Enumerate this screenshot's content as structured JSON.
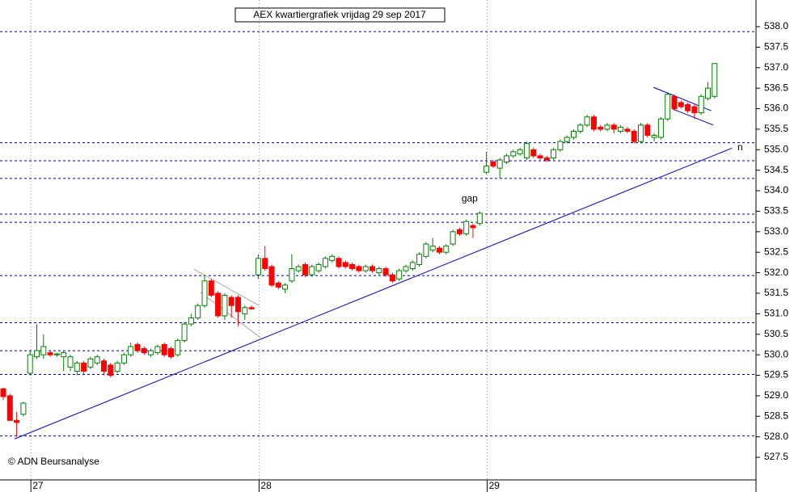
{
  "chart_data": {
    "type": "candlestick",
    "title": "AEX kwartiergrafiek vrijdag 29 sep 2017",
    "credit": "© ADN Beursanalyse",
    "ylim": [
      526.95,
      538.65
    ],
    "yticks": [
      {
        "value": 527.5,
        "label": "527.5"
      },
      {
        "value": 528,
        "label": "528.0"
      },
      528.5,
      {
        "value": 529,
        "label": "529.0"
      },
      529.5,
      {
        "value": 530,
        "label": "530.0"
      },
      530.5,
      {
        "value": 531,
        "label": "531.0"
      },
      531.5,
      {
        "value": 532,
        "label": "532.0"
      },
      532.5,
      {
        "value": 533,
        "label": "533.0"
      },
      533.5,
      {
        "value": 534,
        "label": "534.0"
      },
      534.5,
      {
        "value": 535,
        "label": "535.0"
      },
      535.5,
      {
        "value": 536,
        "label": "536.0"
      },
      536.5,
      {
        "value": 537,
        "label": "537.0"
      },
      537.5,
      {
        "value": 538,
        "label": "538.0"
      }
    ],
    "x_labels": [
      {
        "label": "27",
        "at": 4
      },
      {
        "label": "28",
        "at": 38
      },
      {
        "label": "29",
        "at": 72
      }
    ],
    "up_color": "#008000",
    "down_color": "#ff0000",
    "levels": [
      537.88,
      535.17,
      534.73,
      534.3,
      533.43,
      533.23,
      531.93,
      530.78,
      530.1,
      529.52,
      528.02
    ],
    "trendlines": [
      {
        "color": "#0000cc",
        "points": [
          [
            1.7,
            527.95
          ],
          [
            108.6,
            535.04
          ]
        ]
      },
      {
        "color": "#0000cc",
        "points": [
          [
            96.9,
            536.52
          ],
          [
            105.5,
            535.95
          ]
        ]
      },
      {
        "color": "#0000cc",
        "points": [
          [
            99.8,
            535.99
          ],
          [
            105.8,
            535.6
          ]
        ]
      },
      {
        "color": "#aaaaaa",
        "points": [
          [
            28.4,
            532.09
          ],
          [
            38.1,
            531.2
          ]
        ]
      },
      {
        "color": "#aaaaaa",
        "points": [
          [
            29.4,
            531.52
          ],
          [
            38.3,
            530.42
          ]
        ]
      }
    ],
    "annotations": [
      {
        "text": "gap",
        "at": [
          69.5,
          533.8
        ]
      },
      {
        "text": "n",
        "at": [
          109.8,
          535.05
        ]
      }
    ],
    "ohlc": [
      [
        529.17,
        529.2,
        528.9,
        528.98
      ],
      [
        529.0,
        529.05,
        528.4,
        528.4
      ],
      [
        528.4,
        528.6,
        528.0,
        528.35
      ],
      [
        528.55,
        528.85,
        528.5,
        528.82
      ],
      [
        529.55,
        530.1,
        529.5,
        530.0
      ],
      [
        529.95,
        530.75,
        529.9,
        530.1
      ],
      [
        530.0,
        530.5,
        529.9,
        530.2
      ],
      [
        530.05,
        530.1,
        529.95,
        530.0
      ],
      [
        530.0,
        530.05,
        529.95,
        530.02
      ],
      [
        529.95,
        530.1,
        529.6,
        530.05
      ],
      [
        529.7,
        530.0,
        529.6,
        529.95
      ],
      [
        529.6,
        529.85,
        529.5,
        529.8
      ],
      [
        529.8,
        529.85,
        529.5,
        529.6
      ],
      [
        529.7,
        529.95,
        529.65,
        529.9
      ],
      [
        529.8,
        530.0,
        529.75,
        529.95
      ],
      [
        529.85,
        529.9,
        529.5,
        529.6
      ],
      [
        529.75,
        529.8,
        529.45,
        529.5
      ],
      [
        529.6,
        529.85,
        529.55,
        529.8
      ],
      [
        529.8,
        530.05,
        529.75,
        530.0
      ],
      [
        530.0,
        530.3,
        529.95,
        530.2
      ],
      [
        530.25,
        530.3,
        530.05,
        530.1
      ],
      [
        530.15,
        530.2,
        530.0,
        530.05
      ],
      [
        530.0,
        530.15,
        529.95,
        530.1
      ],
      [
        530.05,
        530.25,
        530.0,
        530.2
      ],
      [
        530.25,
        530.3,
        529.95,
        530.0
      ],
      [
        530.15,
        530.2,
        529.9,
        529.95
      ],
      [
        530.0,
        530.4,
        529.95,
        530.35
      ],
      [
        530.35,
        530.8,
        530.3,
        530.75
      ],
      [
        530.75,
        531.0,
        530.7,
        530.9
      ],
      [
        530.9,
        531.25,
        530.85,
        531.2
      ],
      [
        531.2,
        531.95,
        531.15,
        531.8
      ],
      [
        531.8,
        531.85,
        531.4,
        531.45
      ],
      [
        531.5,
        531.55,
        530.9,
        530.95
      ],
      [
        530.95,
        531.5,
        530.85,
        531.45
      ],
      [
        531.4,
        531.45,
        530.9,
        531.2
      ],
      [
        531.4,
        531.45,
        530.7,
        531.05
      ],
      [
        531.0,
        531.2,
        530.85,
        531.15
      ],
      [
        531.15,
        531.2,
        531.1,
        531.12
      ],
      [
        531.95,
        532.45,
        531.85,
        532.35
      ],
      [
        532.35,
        532.65,
        532.05,
        532.1
      ],
      [
        532.15,
        532.2,
        531.65,
        531.7
      ],
      [
        531.75,
        531.8,
        531.6,
        531.65
      ],
      [
        531.6,
        531.75,
        531.5,
        531.7
      ],
      [
        531.8,
        532.45,
        531.75,
        532.1
      ],
      [
        532.05,
        532.2,
        532.0,
        532.15
      ],
      [
        532.2,
        532.25,
        531.9,
        531.95
      ],
      [
        531.95,
        532.2,
        531.9,
        532.15
      ],
      [
        532.05,
        532.25,
        532.0,
        532.2
      ],
      [
        532.15,
        532.4,
        532.1,
        532.35
      ],
      [
        532.3,
        532.45,
        532.25,
        532.4
      ],
      [
        532.35,
        532.4,
        532.1,
        532.15
      ],
      [
        532.25,
        532.3,
        532.1,
        532.15
      ],
      [
        532.2,
        532.25,
        532.05,
        532.1
      ],
      [
        532.15,
        532.2,
        532.0,
        532.05
      ],
      [
        532.05,
        532.2,
        532.0,
        532.15
      ],
      [
        532.15,
        532.2,
        532.0,
        532.05
      ],
      [
        532.0,
        532.15,
        531.95,
        532.1
      ],
      [
        532.1,
        532.15,
        531.9,
        531.95
      ],
      [
        531.95,
        532.0,
        531.75,
        531.8
      ],
      [
        531.85,
        532.1,
        531.8,
        532.05
      ],
      [
        532.05,
        532.2,
        532.0,
        532.15
      ],
      [
        532.1,
        532.3,
        532.05,
        532.25
      ],
      [
        532.2,
        532.5,
        532.15,
        532.45
      ],
      [
        532.4,
        532.75,
        532.35,
        532.7
      ],
      [
        532.55,
        532.85,
        532.5,
        532.65
      ],
      [
        532.6,
        532.65,
        532.45,
        532.5
      ],
      [
        532.5,
        532.7,
        532.45,
        532.65
      ],
      [
        532.7,
        533.05,
        532.65,
        533.0
      ],
      [
        533.05,
        533.1,
        532.9,
        532.95
      ],
      [
        532.95,
        533.3,
        532.9,
        533.25
      ],
      [
        533.15,
        533.2,
        532.85,
        533.1
      ],
      [
        533.2,
        533.5,
        533.15,
        533.45
      ],
      [
        534.45,
        534.95,
        534.4,
        534.6
      ],
      [
        534.7,
        534.75,
        534.55,
        534.6
      ],
      [
        534.55,
        534.8,
        534.3,
        534.75
      ],
      [
        534.7,
        534.9,
        534.65,
        534.85
      ],
      [
        534.85,
        535.0,
        534.8,
        534.95
      ],
      [
        534.9,
        535.05,
        534.85,
        535.0
      ],
      [
        534.8,
        535.2,
        534.75,
        535.15
      ],
      [
        535.0,
        535.05,
        534.8,
        534.85
      ],
      [
        534.85,
        534.9,
        534.75,
        534.8
      ],
      [
        534.8,
        534.85,
        534.7,
        534.75
      ],
      [
        534.8,
        535.05,
        534.75,
        535.0
      ],
      [
        535.0,
        535.25,
        534.95,
        535.2
      ],
      [
        535.2,
        535.35,
        535.15,
        535.3
      ],
      [
        535.3,
        535.5,
        535.25,
        535.45
      ],
      [
        535.45,
        535.65,
        535.4,
        535.6
      ],
      [
        535.6,
        535.85,
        535.55,
        535.8
      ],
      [
        535.8,
        535.85,
        535.45,
        535.5
      ],
      [
        535.55,
        535.6,
        535.45,
        535.5
      ],
      [
        535.5,
        535.65,
        535.45,
        535.6
      ],
      [
        535.6,
        535.65,
        535.4,
        535.5
      ],
      [
        535.45,
        535.6,
        535.4,
        535.55
      ],
      [
        535.5,
        535.55,
        535.4,
        535.45
      ],
      [
        535.45,
        535.5,
        535.15,
        535.2
      ],
      [
        535.2,
        535.65,
        535.15,
        535.6
      ],
      [
        535.6,
        535.65,
        535.3,
        535.35
      ],
      [
        535.3,
        535.4,
        535.2,
        535.35
      ],
      [
        535.3,
        535.8,
        535.25,
        535.75
      ],
      [
        535.75,
        536.4,
        535.7,
        536.35
      ],
      [
        536.3,
        536.35,
        535.95,
        536.0
      ],
      [
        536.15,
        536.2,
        536.0,
        536.05
      ],
      [
        536.1,
        536.15,
        535.9,
        535.95
      ],
      [
        536.05,
        536.1,
        535.75,
        535.9
      ],
      [
        535.9,
        536.35,
        535.85,
        536.3
      ],
      [
        536.25,
        536.65,
        536.2,
        536.5
      ],
      [
        536.3,
        537.1,
        536.25,
        537.1
      ]
    ]
  }
}
